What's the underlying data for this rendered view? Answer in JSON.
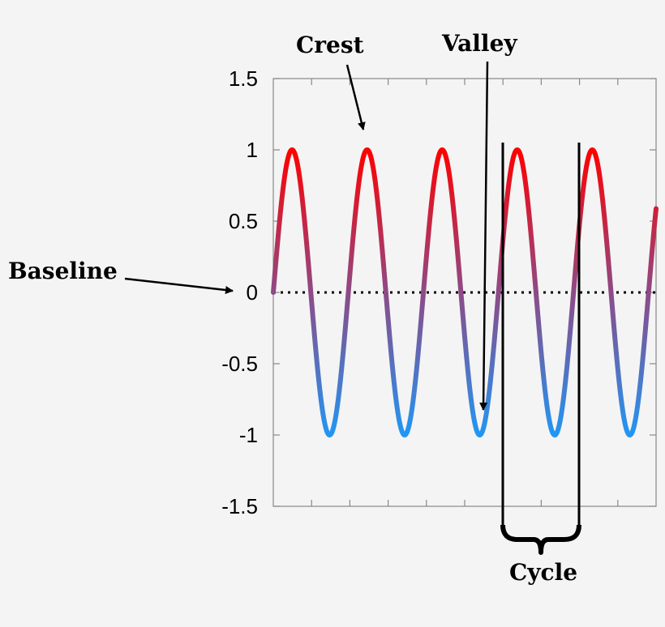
{
  "chart_data": {
    "type": "line",
    "title": "",
    "xlabel": "",
    "ylabel": "",
    "ylim": [
      -1.5,
      1.5
    ],
    "y_ticks": [
      "1.5",
      "1",
      "0.5",
      "0",
      "-0.5",
      "-1",
      "-1.5"
    ],
    "y_tick_values": [
      1.5,
      1,
      0.5,
      0,
      -0.5,
      -1,
      -1.5
    ],
    "grid": false,
    "series": [
      {
        "function": "sine",
        "amplitude": 1,
        "cycles": 5.1,
        "phase_start": 0
      }
    ],
    "baseline_value": 0,
    "colors": {
      "crest": "#ff0000",
      "valley": "#2196f3",
      "baseline": "#000000"
    }
  },
  "annotations": {
    "crest": "Crest",
    "valley": "Valley",
    "baseline": "Baseline",
    "cycle": "Cycle"
  }
}
